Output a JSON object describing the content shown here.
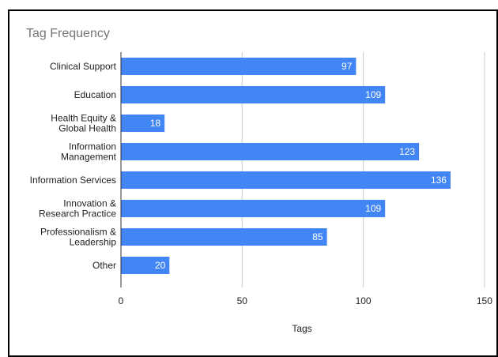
{
  "chart_data": {
    "type": "bar",
    "orientation": "horizontal",
    "title": "Tag Frequency",
    "xlabel": "Tags",
    "ylabel": "",
    "categories": [
      [
        "Clinical Support"
      ],
      [
        "Education"
      ],
      [
        "Health Equity &",
        "Global Health"
      ],
      [
        "Information",
        "Management"
      ],
      [
        "Information Services"
      ],
      [
        "Innovation &",
        "Research Practice"
      ],
      [
        "Professionalism &",
        "Leadership"
      ],
      [
        "Other"
      ]
    ],
    "values": [
      97,
      109,
      18,
      123,
      136,
      109,
      85,
      20
    ],
    "xlim": [
      0,
      150
    ],
    "xticks": [
      "0",
      "50",
      "100",
      "150"
    ],
    "xtick_values": [
      0,
      50,
      100,
      150
    ],
    "grid": true,
    "legend": "none",
    "colors": {
      "bar": "#4285f4",
      "data_label": "#ffffff",
      "grid": "#cccccc",
      "axis": "#333333",
      "text": "#222222",
      "title": "#757575"
    }
  }
}
